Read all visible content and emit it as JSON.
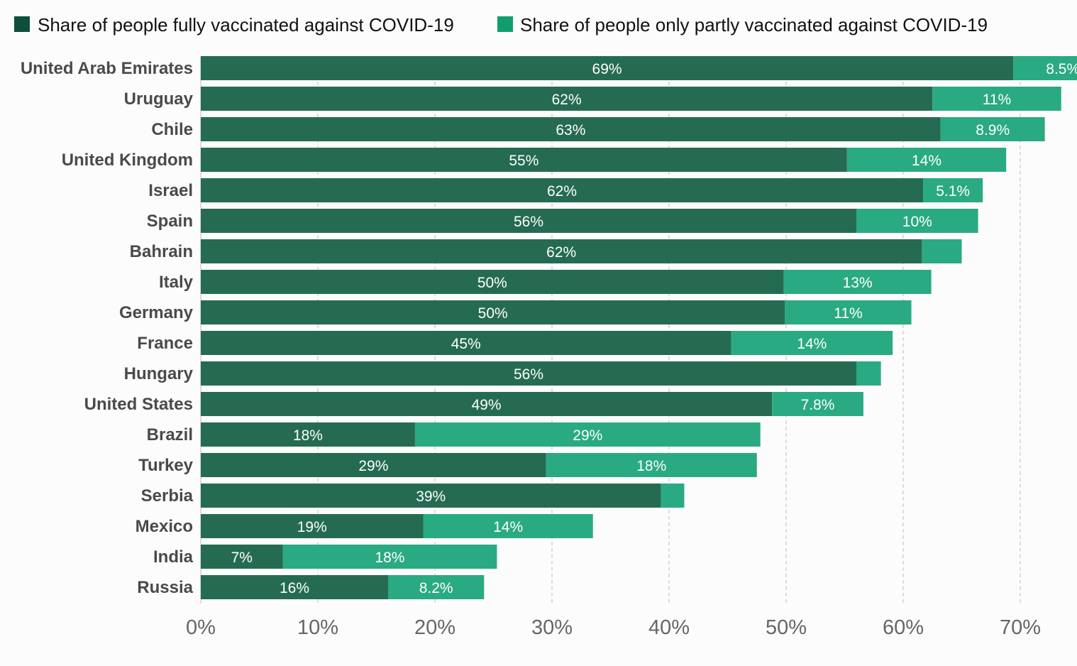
{
  "chart_data": {
    "type": "bar",
    "orientation": "horizontal",
    "stacked": true,
    "title": "",
    "xlabel": "",
    "ylabel": "",
    "xlim": [
      0,
      75
    ],
    "x_ticks": [
      "0%",
      "10%",
      "20%",
      "30%",
      "40%",
      "50%",
      "60%",
      "70%"
    ],
    "x_tick_values": [
      0,
      10,
      20,
      30,
      40,
      50,
      60,
      70
    ],
    "grid": "vertical dashed",
    "legend_position": "top-left",
    "colors": {
      "full": "#256b52",
      "partial": "#2aaa82",
      "legend_full": "#0d4f3a",
      "legend_partial": "#119e6f"
    },
    "categories": [
      "United Arab Emirates",
      "Uruguay",
      "Chile",
      "United Kingdom",
      "Israel",
      "Spain",
      "Bahrain",
      "Italy",
      "Germany",
      "France",
      "Hungary",
      "United States",
      "Brazil",
      "Turkey",
      "Serbia",
      "Mexico",
      "India",
      "Russia"
    ],
    "series": [
      {
        "name": "Share of people fully vaccinated against COVID-19",
        "values": [
          69.4,
          62.5,
          63.2,
          55.2,
          61.7,
          56.0,
          61.6,
          49.8,
          49.9,
          45.3,
          56.0,
          48.8,
          18.3,
          29.5,
          39.3,
          19.0,
          7.0,
          16.0
        ],
        "labels": [
          "69%",
          "62%",
          "63%",
          "55%",
          "62%",
          "56%",
          "62%",
          "50%",
          "50%",
          "45%",
          "56%",
          "49%",
          "18%",
          "29%",
          "39%",
          "19%",
          "7%",
          "16%"
        ]
      },
      {
        "name": "Share of people only partly vaccinated against COVID-19",
        "values": [
          8.5,
          11.0,
          8.9,
          13.6,
          5.1,
          10.4,
          3.4,
          12.6,
          10.8,
          13.8,
          2.1,
          7.8,
          29.5,
          18.0,
          2.0,
          14.5,
          18.3,
          8.2
        ],
        "labels": [
          "8.5%",
          "11%",
          "8.9%",
          "14%",
          "5.1%",
          "10%",
          "",
          "13%",
          "11%",
          "14%",
          "",
          "7.8%",
          "29%",
          "18%",
          "",
          "14%",
          "18%",
          "8.2%"
        ]
      }
    ]
  }
}
